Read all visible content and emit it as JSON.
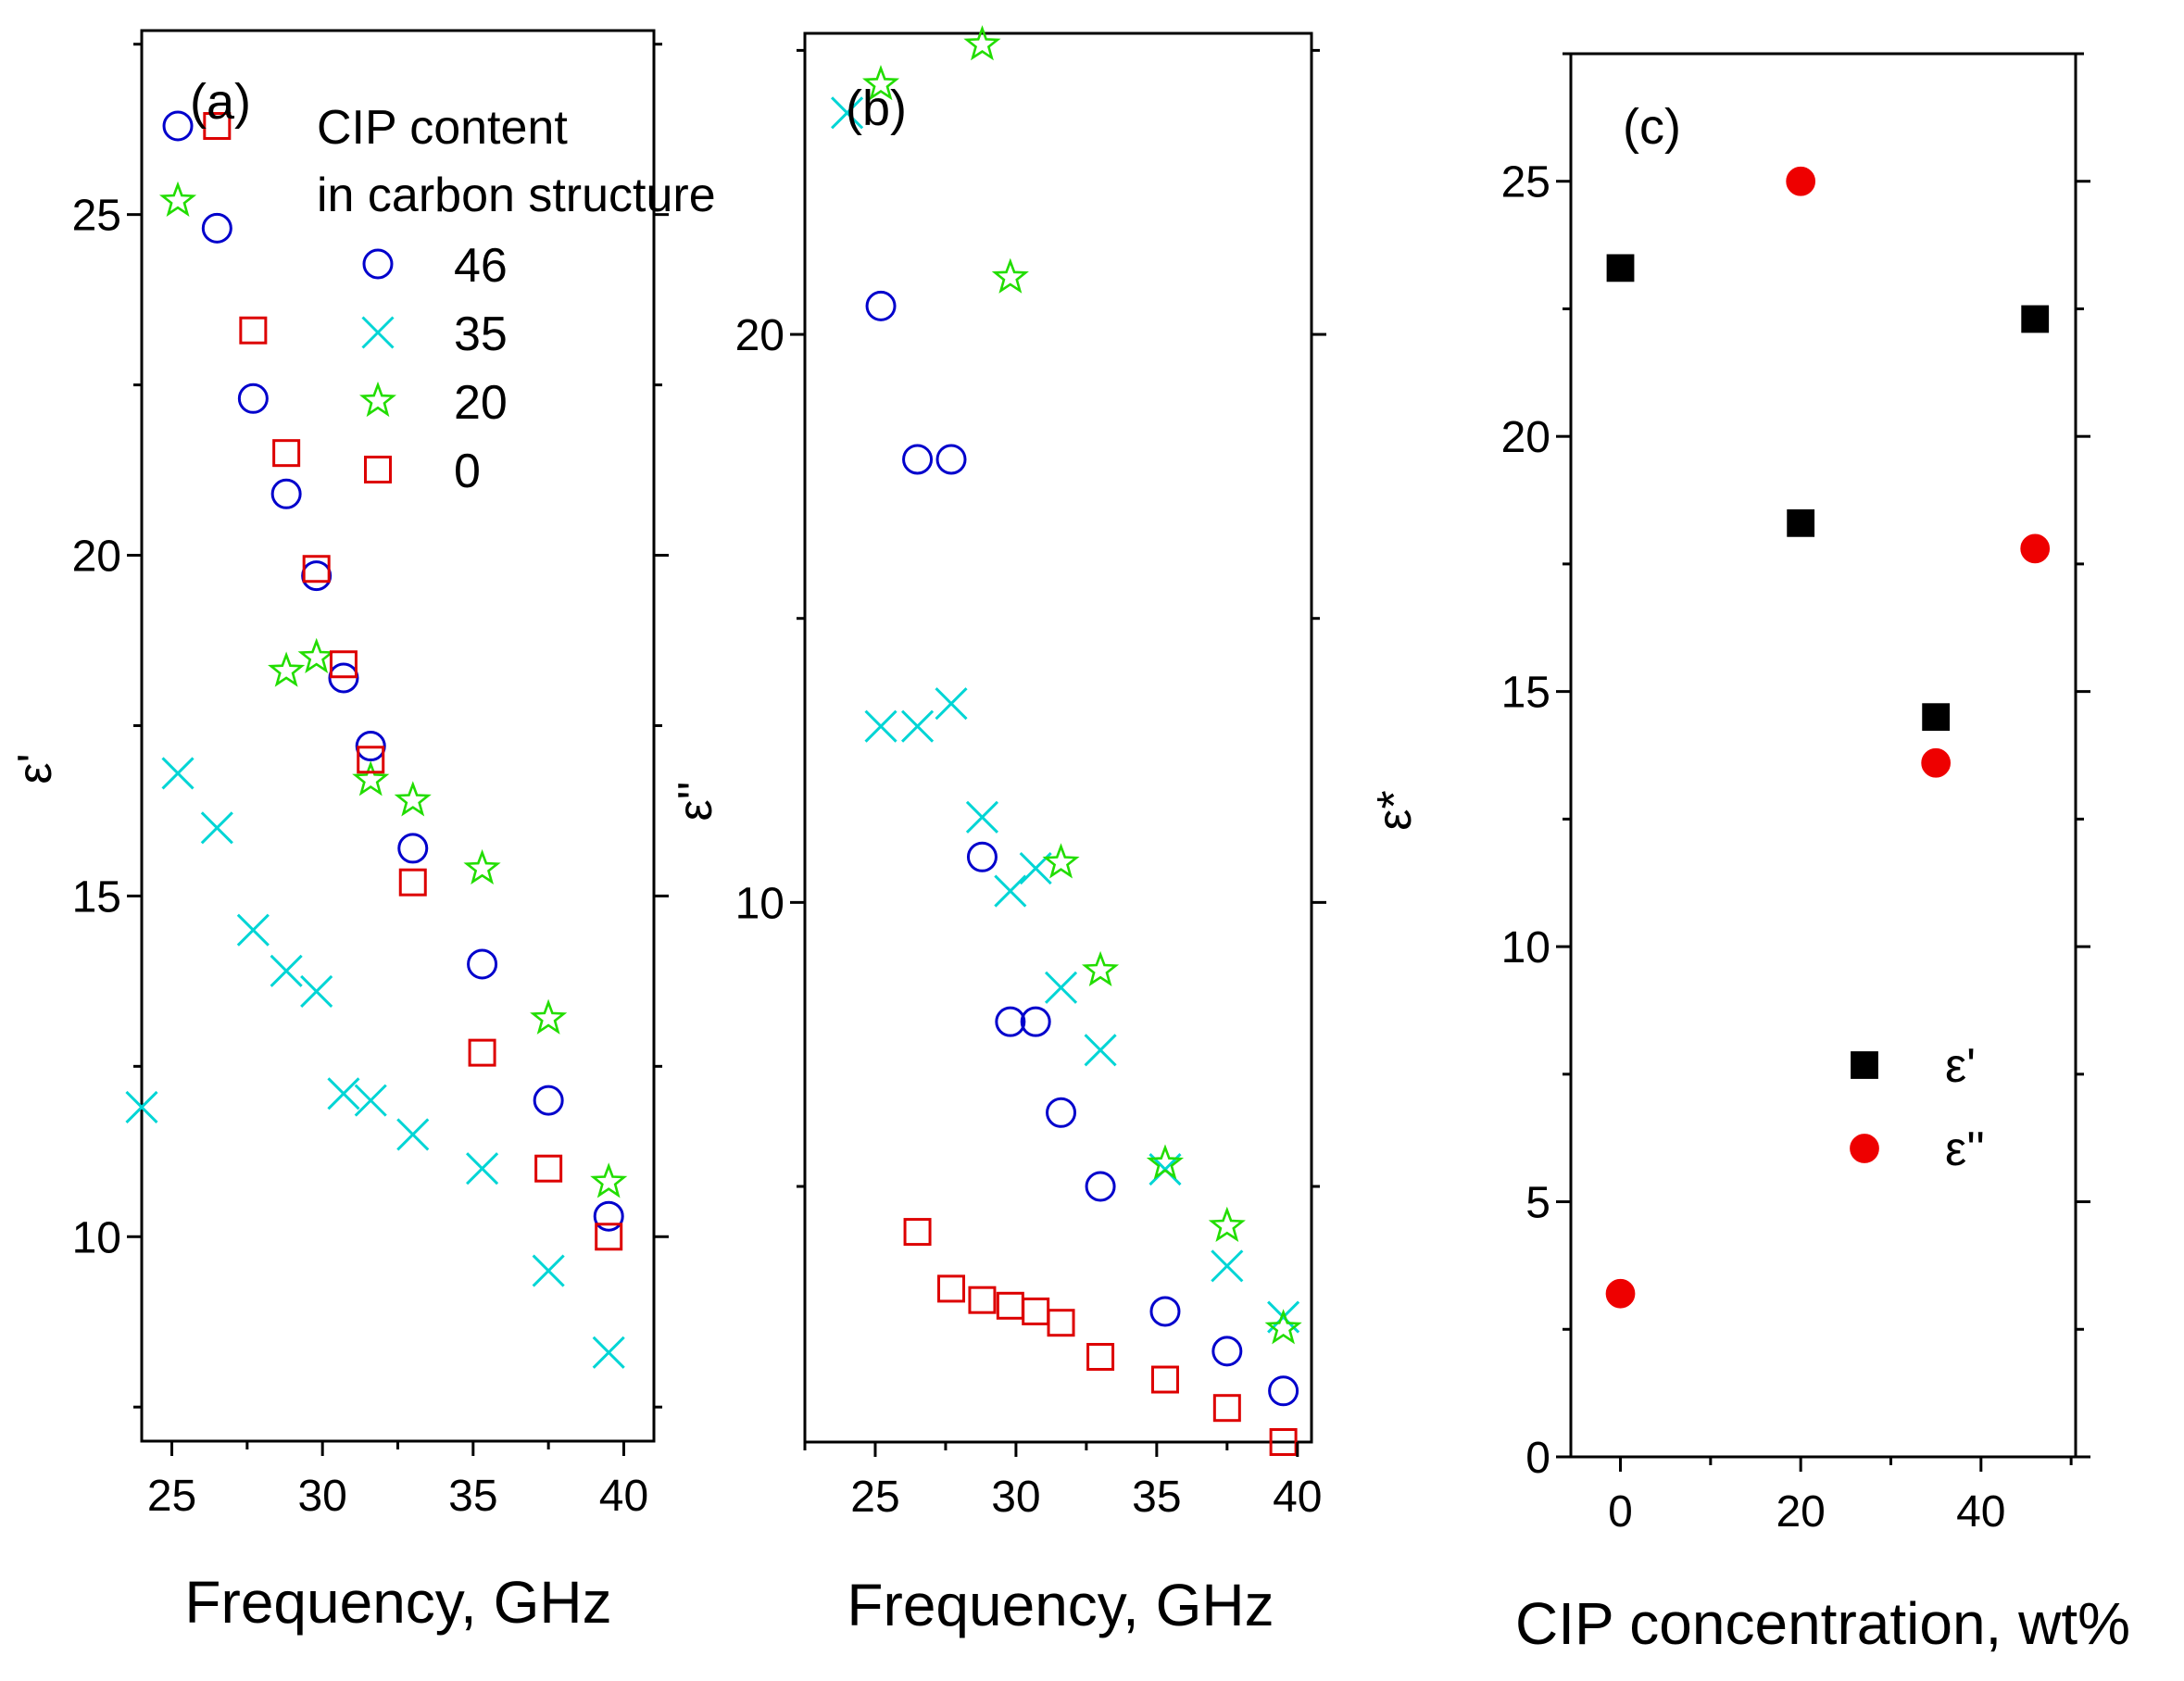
{
  "chart_data": [
    {
      "type": "scatter",
      "panel": "(a)",
      "xlabel": "Frequency, GHz",
      "ylabel": "ε'",
      "xlim": [
        24,
        41
      ],
      "ylim": [
        7,
        27.7
      ],
      "xticks": [
        25,
        30,
        35,
        40
      ],
      "yticks": [
        10,
        15,
        20,
        25
      ],
      "legend": {
        "title_lines": [
          "CIP content",
          "in carbon structure"
        ],
        "position": "top-right"
      },
      "series": [
        {
          "name": "46",
          "marker": "circle",
          "color": "#0000cc",
          "x": [
            25.2,
            26.5,
            27.7,
            28.8,
            29.8,
            30.7,
            31.6,
            33.0,
            35.3,
            37.5,
            39.5
          ],
          "y": [
            26.3,
            24.8,
            22.3,
            20.9,
            19.7,
            18.2,
            17.2,
            15.7,
            14.0,
            12.0,
            10.3
          ]
        },
        {
          "name": "35",
          "marker": "x",
          "color": "#00d5d5",
          "x": [
            24.0,
            25.2,
            26.5,
            27.7,
            28.8,
            29.8,
            30.7,
            31.6,
            33.0,
            35.3,
            37.5,
            39.5
          ],
          "y": [
            11.9,
            16.8,
            16.0,
            14.5,
            13.9,
            13.6,
            12.1,
            12.0,
            11.5,
            11.0,
            9.5,
            8.3
          ]
        },
        {
          "name": "20",
          "marker": "star",
          "color": "#22dd00",
          "x": [
            25.2,
            28.8,
            29.8,
            31.6,
            33.0,
            35.3,
            37.5,
            39.5
          ],
          "y": [
            25.2,
            18.3,
            18.5,
            16.7,
            16.4,
            15.4,
            13.2,
            10.8
          ]
        },
        {
          "name": "0",
          "marker": "square",
          "color": "#dd0000",
          "x": [
            26.5,
            27.7,
            28.8,
            29.8,
            30.7,
            31.6,
            33.0,
            35.3,
            37.5,
            39.5
          ],
          "y": [
            26.3,
            23.3,
            21.5,
            19.8,
            18.4,
            17.0,
            15.2,
            12.7,
            11.0,
            10.0
          ]
        }
      ]
    },
    {
      "type": "scatter",
      "panel": "(b)",
      "xlabel": "Frequency, GHz",
      "ylabel": "ε''",
      "xlim": [
        22.5,
        40.5
      ],
      "ylim": [
        0.5,
        25.3
      ],
      "xticks": [
        25,
        30,
        35,
        40
      ],
      "yticks": [
        10,
        20
      ],
      "series": [
        {
          "name": "46",
          "marker": "circle",
          "color": "#0000cc",
          "x": [
            25.2,
            26.5,
            27.7,
            28.8,
            29.8,
            30.7,
            31.6,
            33.0,
            35.3,
            37.5,
            39.5
          ],
          "y": [
            20.5,
            17.8,
            17.8,
            10.8,
            7.9,
            7.9,
            6.3,
            5.0,
            2.8,
            2.1,
            1.4
          ]
        },
        {
          "name": "35",
          "marker": "x",
          "color": "#00d5d5",
          "x": [
            24.0,
            25.2,
            26.5,
            27.7,
            28.8,
            29.8,
            30.7,
            31.6,
            33.0,
            35.3,
            37.5,
            39.5
          ],
          "y": [
            23.9,
            13.1,
            13.1,
            13.5,
            11.5,
            10.2,
            10.6,
            8.5,
            7.4,
            5.3,
            3.6,
            2.7
          ]
        },
        {
          "name": "20",
          "marker": "star",
          "color": "#22dd00",
          "x": [
            25.2,
            28.8,
            29.8,
            31.6,
            33.0,
            35.3,
            37.5,
            39.5
          ],
          "y": [
            24.4,
            25.1,
            21.0,
            10.7,
            8.8,
            5.4,
            4.3,
            2.5
          ]
        },
        {
          "name": "0",
          "marker": "square",
          "color": "#dd0000",
          "x": [
            26.5,
            27.7,
            28.8,
            29.8,
            30.7,
            31.6,
            33.0,
            35.3,
            37.5,
            39.5
          ],
          "y": [
            4.2,
            3.2,
            3.0,
            2.9,
            2.8,
            2.6,
            2.0,
            1.6,
            1.1,
            0.5
          ]
        }
      ]
    },
    {
      "type": "scatter",
      "panel": "(c)",
      "xlabel": "CIP concentration, wt%",
      "ylabel": "ε*",
      "xlim": [
        -5.5,
        50.5
      ],
      "ylim": [
        0,
        27.5
      ],
      "xticks": [
        0,
        20,
        40
      ],
      "yticks": [
        0,
        5,
        10,
        15,
        20,
        25
      ],
      "legend": {
        "position": "bottom-right"
      },
      "series": [
        {
          "name": "ε'",
          "marker": "filled-square",
          "color": "#000000",
          "x": [
            0,
            20,
            35,
            46
          ],
          "y": [
            23.3,
            18.3,
            14.5,
            22.3
          ]
        },
        {
          "name": "ε''",
          "marker": "filled-circle",
          "color": "#ee0000",
          "x": [
            0,
            20,
            35,
            46
          ],
          "y": [
            3.2,
            25.0,
            13.6,
            17.8
          ]
        }
      ]
    }
  ]
}
